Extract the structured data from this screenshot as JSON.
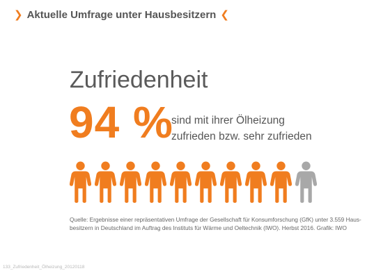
{
  "header": {
    "left_mark": "❯",
    "title": "Aktuelle Umfrage unter Hausbesitzern",
    "right_mark": "❮"
  },
  "main": {
    "title": "Zufriedenheit",
    "percent": "94 %",
    "desc_line1": "sind mit ihrer Ölheizung",
    "desc_line2": "zufrieden bzw. sehr zufrieden"
  },
  "people": {
    "total": 10,
    "highlighted": 9,
    "icon": "person-icon",
    "color_highlight": "#f07d1f",
    "color_rest": "#a8a8a8"
  },
  "source": {
    "line1": "Quelle: Ergebnisse einer repräsentativen Umfrage der Gesellschaft für Konsumforschung (GfK) unter 3.559 Haus-",
    "line2": "besitzern in Deutschland im Auftrag des Instituts für Wärme und Oeltechnik (IWO). Herbst 2016. Grafik: IWO"
  },
  "footer": {
    "filename": "133_Zufriedenheit_Ölheizung_20120118"
  },
  "colors": {
    "accent": "#f07d1f",
    "text": "#555555"
  }
}
